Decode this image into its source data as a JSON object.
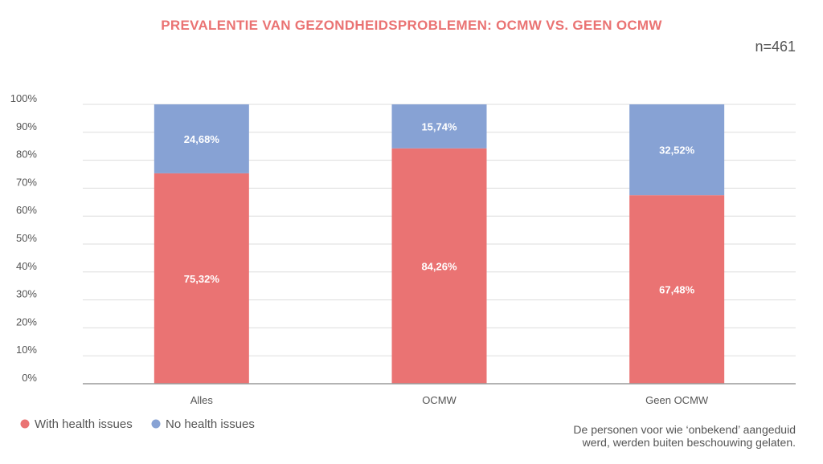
{
  "chart_data": {
    "type": "bar",
    "stacked": true,
    "title": "PREVALENTIE VAN GEZONDHEIDSPROBLEMEN: OCMW VS. GEEN OCMW",
    "sample_size": "n=461",
    "xlabel": "",
    "ylabel": "",
    "ylim": [
      0,
      100
    ],
    "y_ticks": [
      "0%",
      "10%",
      "20%",
      "30%",
      "40%",
      "50%",
      "60%",
      "70%",
      "80%",
      "90%",
      "100%"
    ],
    "grid": true,
    "legend_position": "bottom-left",
    "categories": [
      "Alles",
      "OCMW",
      "Geen OCMW"
    ],
    "series": [
      {
        "name": "With health issues",
        "color": "#ea7373",
        "values": [
          75.32,
          84.26,
          67.48
        ],
        "labels": [
          "75,32%",
          "84,26%",
          "67,48%"
        ]
      },
      {
        "name": "No health issues",
        "color": "#87a2d4",
        "values": [
          24.68,
          15.74,
          32.52
        ],
        "labels": [
          "24,68%",
          "15,74%",
          "32,52%"
        ]
      }
    ],
    "footnote": [
      "De personen voor wie ‘onbekend’ aangeduid",
      "werd, werden buiten beschouwing gelaten."
    ]
  },
  "colors": {
    "title": "#ea7373",
    "text": "#555555",
    "grid": "#dddddd",
    "axis": "#9a9a9a",
    "value_label": "#ffffff"
  }
}
